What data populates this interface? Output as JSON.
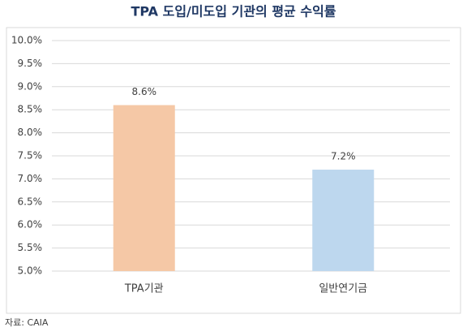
{
  "chart_data": {
    "type": "bar",
    "title": "TPA 도입/미도입 기관의 평균 수익률",
    "categories": [
      "TPA기관",
      "일반연기금"
    ],
    "values": [
      8.6,
      7.2
    ],
    "value_labels": [
      "8.6%",
      "7.2%"
    ],
    "colors": [
      "#f5c8a6",
      "#bdd7ee"
    ],
    "ylim": [
      5,
      10
    ],
    "yticks": [
      {
        "value": 5,
        "label": "5.0%"
      },
      {
        "value": 5.5,
        "label": "5.5%"
      },
      {
        "value": 6,
        "label": "6.0%"
      },
      {
        "value": 6.5,
        "label": "6.5%"
      },
      {
        "value": 7,
        "label": "7.0%"
      },
      {
        "value": 7.5,
        "label": "7.5%"
      },
      {
        "value": 8,
        "label": "8.0%"
      },
      {
        "value": 8.5,
        "label": "8.5%"
      },
      {
        "value": 9,
        "label": "9.0%"
      },
      {
        "value": 9.5,
        "label": "9.5%"
      },
      {
        "value": 10,
        "label": "10.0%"
      }
    ],
    "grid": true,
    "source": "자료: CAIA"
  }
}
